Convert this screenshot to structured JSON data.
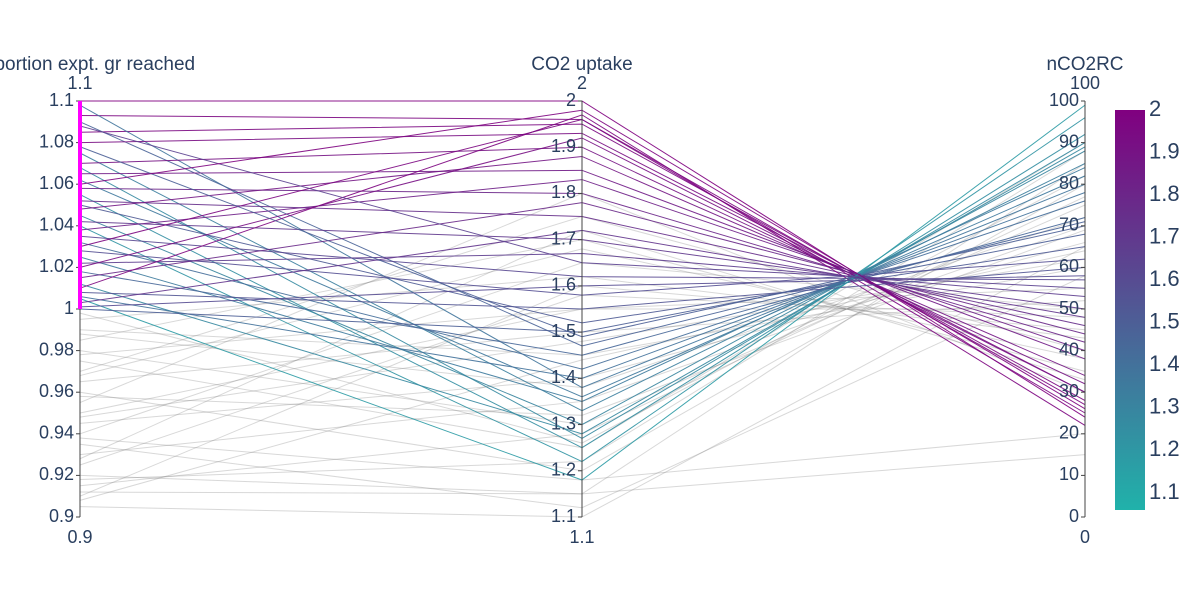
{
  "chart_data": {
    "type": "parcoords",
    "dimensions": [
      {
        "label": "Proportion expt. gr reached",
        "range": [
          0.9,
          1.1
        ],
        "constraintrange": [
          1,
          1.1
        ],
        "ticks": [
          0.9,
          0.92,
          0.94,
          0.96,
          0.98,
          1,
          1.02,
          1.04,
          1.06,
          1.08,
          1.1
        ],
        "values": [
          0.99,
          0.98,
          0.97,
          0.96,
          0.95,
          0.94,
          0.93,
          0.92,
          0.91,
          0.905,
          0.985,
          0.975,
          0.965,
          0.955,
          0.945,
          0.935,
          0.925,
          0.915,
          0.995,
          0.988,
          0.968,
          0.948,
          0.928,
          0.918,
          0.958,
          0.938,
          0.978,
          0.908,
          0.998,
          0.912,
          1.1,
          1.093,
          1.085,
          1.098,
          1.09,
          1.08,
          1.075,
          1.07,
          1.068,
          1.065,
          1.062,
          1.058,
          1.055,
          1.052,
          1.05,
          1.048,
          1.045,
          1.042,
          1.04,
          1.038,
          1.035,
          1.032,
          1.03,
          1.028,
          1.025,
          1.022,
          1.02,
          1.018,
          1.015,
          1.012,
          1.01,
          1.008,
          1.006,
          1.005,
          1.003,
          1.001,
          1.0,
          1.088,
          1.078,
          1.06
        ]
      },
      {
        "label": "CO2 uptake",
        "range": [
          1.1,
          2
        ],
        "ticks": [
          1.1,
          1.2,
          1.3,
          1.4,
          1.5,
          1.6,
          1.7,
          1.8,
          1.9,
          2
        ],
        "values": [
          1.45,
          1.3,
          1.75,
          1.2,
          1.55,
          1.65,
          1.35,
          1.15,
          1.6,
          1.1,
          1.7,
          1.25,
          1.5,
          1.8,
          1.4,
          1.12,
          1.58,
          1.28,
          1.62,
          1.38,
          1.68,
          1.48,
          1.72,
          1.22,
          1.32,
          1.18,
          1.55,
          1.44,
          1.26,
          1.15,
          2,
          1.96,
          1.95,
          1.38,
          1.47,
          1.93,
          1.33,
          1.9,
          1.27,
          1.85,
          1.36,
          1.8,
          1.25,
          1.75,
          1.52,
          1.88,
          1.3,
          1.7,
          1.22,
          1.83,
          1.62,
          1.42,
          1.96,
          1.58,
          1.35,
          1.67,
          1.92,
          1.45,
          1.78,
          1.28,
          1.97,
          1.55,
          1.4,
          1.18,
          1.72,
          1.6,
          1.5,
          1.65,
          1.49,
          1.98
        ]
      },
      {
        "label": "nCO2RC",
        "range": [
          0,
          100
        ],
        "ticks": [
          0,
          10,
          20,
          30,
          40,
          50,
          60,
          70,
          80,
          90,
          100
        ],
        "values": [
          60,
          75,
          40,
          80,
          55,
          50,
          70,
          85,
          45,
          65,
          35,
          90,
          52,
          30,
          66,
          58,
          48,
          77,
          43,
          72,
          38,
          62,
          33,
          88,
          69,
          20,
          50,
          64,
          82,
          15,
          24,
          27,
          28,
          80,
          71,
          30,
          85,
          32,
          90,
          38,
          82,
          42,
          92,
          46,
          65,
          34,
          88,
          50,
          96,
          40,
          57,
          76,
          25,
          62,
          84,
          53,
          30,
          72,
          44,
          89,
          22,
          60,
          78,
          99,
          48,
          58,
          68,
          55,
          70,
          26
        ]
      }
    ],
    "line": {
      "color_dimension": 1,
      "colorscale": [
        "#20b2aa",
        "#800080"
      ],
      "cmin": 1.06,
      "cmax": 2,
      "unselected_color": "#7f7f7f",
      "colorbar_ticks": [
        1.1,
        1.2,
        1.3,
        1.4,
        1.5,
        1.6,
        1.7,
        1.8,
        1.9,
        2
      ]
    },
    "constraint_color": "#ff00ff"
  }
}
